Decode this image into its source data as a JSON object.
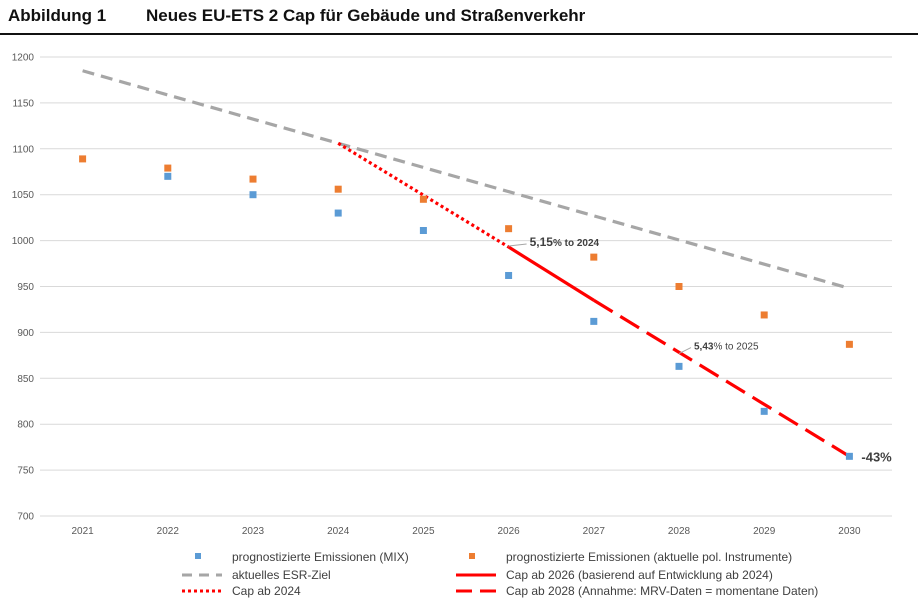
{
  "title": {
    "figure_label": "Abbildung 1",
    "text": "Neues EU-ETS 2 Cap für Gebäude und Straßenverkehr"
  },
  "colors": {
    "mix": "#5B9BD5",
    "policy": "#ED7D31",
    "esr": "#A6A6A6",
    "cap": "#FF0000",
    "grid": "#D9D9D9"
  },
  "chart_data": {
    "type": "scatter",
    "title": "",
    "xlabel": "",
    "ylabel": "",
    "x": [
      "2021",
      "2022",
      "2023",
      "2024",
      "2025",
      "2026",
      "2027",
      "2028",
      "2029",
      "2030"
    ],
    "ylim": [
      700,
      1200
    ],
    "yticks": [
      700,
      750,
      800,
      850,
      900,
      950,
      1000,
      1050,
      1100,
      1150,
      1200
    ],
    "grid": true,
    "legend_position": "bottom",
    "series": [
      {
        "name": "prognostizierte Emissionen (MIX)",
        "kind": "points",
        "color": "#5B9BD5",
        "x": [
          "2022",
          "2023",
          "2024",
          "2025",
          "2026",
          "2027",
          "2028",
          "2029",
          "2030"
        ],
        "values": [
          1070,
          1050,
          1030,
          1011,
          962,
          912,
          863,
          814,
          765
        ]
      },
      {
        "name": "prognostizierte Emissionen (aktuelle pol. Instrumente)",
        "kind": "points",
        "color": "#ED7D31",
        "x": [
          "2021",
          "2022",
          "2023",
          "2024",
          "2025",
          "2026",
          "2027",
          "2028",
          "2029",
          "2030"
        ],
        "values": [
          1089,
          1079,
          1067,
          1056,
          1045,
          1013,
          982,
          950,
          919,
          887
        ]
      },
      {
        "name": "aktuelles ESR-Ziel",
        "kind": "line",
        "style": "dashed",
        "color": "#A6A6A6",
        "x": [
          "2021",
          "2030"
        ],
        "values": [
          1185,
          948
        ]
      },
      {
        "name": "Cap ab 2024",
        "kind": "line",
        "style": "dotted",
        "color": "#FF0000",
        "x": [
          "2024",
          "2026"
        ],
        "values": [
          1106,
          993
        ]
      },
      {
        "name": "Cap ab 2026 (basierend auf Entwicklung ab 2024)",
        "kind": "line",
        "style": "solid",
        "color": "#FF0000",
        "x": [
          "2026",
          "2027"
        ],
        "values": [
          993,
          935
        ]
      },
      {
        "name": "Cap ab 2028 (Annahme: MRV-Daten = momentane Daten)",
        "kind": "line",
        "style": "longdash",
        "color": "#FF0000",
        "x": [
          "2027",
          "2030"
        ],
        "values": [
          935,
          765
        ]
      }
    ],
    "annotations": [
      {
        "id": "a1",
        "text_main": "5,15",
        "text_rest": "% to 2024",
        "x": "2026",
        "y": 993
      },
      {
        "id": "a2",
        "text_main": "5,43",
        "text_rest": "% to 2025",
        "x": "2028",
        "y": 877
      },
      {
        "id": "a3",
        "text_main": "-43%",
        "text_rest": "",
        "x": "2030",
        "y": 765
      }
    ]
  }
}
